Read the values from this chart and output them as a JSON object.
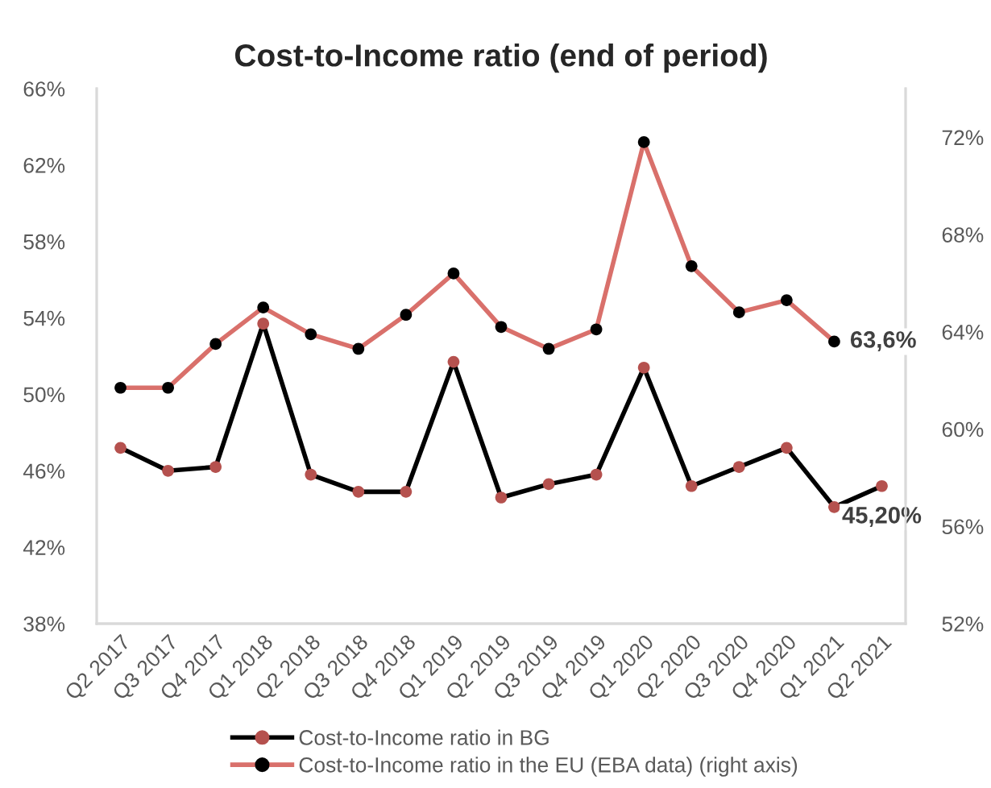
{
  "chart_data": {
    "type": "line",
    "title": "Cost-to-Income ratio (end of period)",
    "categories": [
      "Q2 2017",
      "Q3 2017",
      "Q4 2017",
      "Q1 2018",
      "Q2 2018",
      "Q3 2018",
      "Q4 2018",
      "Q1 2019",
      "Q2 2019",
      "Q3 2019",
      "Q4 2019",
      "Q1 2020",
      "Q2 2020",
      "Q3 2020",
      "Q4 2020",
      "Q1 2021",
      "Q2 2021"
    ],
    "series": [
      {
        "name": "Cost-to-Income ratio in BG",
        "color": "#000000",
        "colors": [
          "#b5514e",
          "#b5514e",
          "#b5514e",
          "#b5514e",
          "#b5514e",
          "#b5514e",
          "#b5514e",
          "#b5514e",
          "#b5514e",
          "#b5514e",
          "#b5514e",
          "#b5514e",
          "#b5514e",
          "#b5514e",
          "#b5514e",
          "#b5514e",
          "#b5514e"
        ],
        "values": [
          47.2,
          46.0,
          46.2,
          53.7,
          45.8,
          44.9,
          44.9,
          51.7,
          44.6,
          45.3,
          45.8,
          51.4,
          45.2,
          46.2,
          47.2,
          44.1,
          45.2
        ],
        "value_labels": [
          null,
          null,
          null,
          null,
          null,
          null,
          null,
          null,
          null,
          null,
          null,
          null,
          null,
          null,
          null,
          null,
          "45,20%"
        ]
      },
      {
        "name": "Cost-to-Income ratio in the EU (EBA data) (right axis)",
        "color": "#d9706b",
        "axis": "y2",
        "colors": [
          "#000000",
          "#000000",
          "#000000",
          "#000000",
          "#000000",
          "#000000",
          "#000000",
          "#000000",
          "#000000",
          "#000000",
          "#000000",
          "#000000",
          "#000000",
          "#000000",
          "#000000",
          "#000000",
          "#000000"
        ],
        "values": [
          61.7,
          61.7,
          63.5,
          65.0,
          63.9,
          63.3,
          64.7,
          66.4,
          64.2,
          63.3,
          64.1,
          71.8,
          66.7,
          64.8,
          65.3,
          63.6,
          null
        ],
        "value_labels": [
          null,
          null,
          null,
          null,
          null,
          null,
          null,
          null,
          null,
          null,
          null,
          null,
          null,
          null,
          null,
          "63,6%",
          null
        ]
      }
    ],
    "ylim": [
      38,
      66
    ],
    "yticks": [
      {
        "value": 38,
        "label": "38%"
      },
      {
        "value": 42,
        "label": "42%"
      },
      {
        "value": 46,
        "label": "46%"
      },
      {
        "value": 50,
        "label": "50%"
      },
      {
        "value": 54,
        "label": "54%"
      },
      {
        "value": 58,
        "label": "58%"
      },
      {
        "value": 62,
        "label": "62%"
      },
      {
        "value": 66,
        "label": "66%"
      }
    ],
    "y2lim": [
      52,
      74
    ],
    "y2ticks": [
      {
        "value": 52,
        "label": "52%"
      },
      {
        "value": 56,
        "label": "56%"
      },
      {
        "value": 60,
        "label": "60%"
      },
      {
        "value": 64,
        "label": "64%"
      },
      {
        "value": 68,
        "label": "68%"
      },
      {
        "value": 72,
        "label": "72%"
      }
    ],
    "marker": "circle",
    "legend": "bottom",
    "grid": false
  }
}
